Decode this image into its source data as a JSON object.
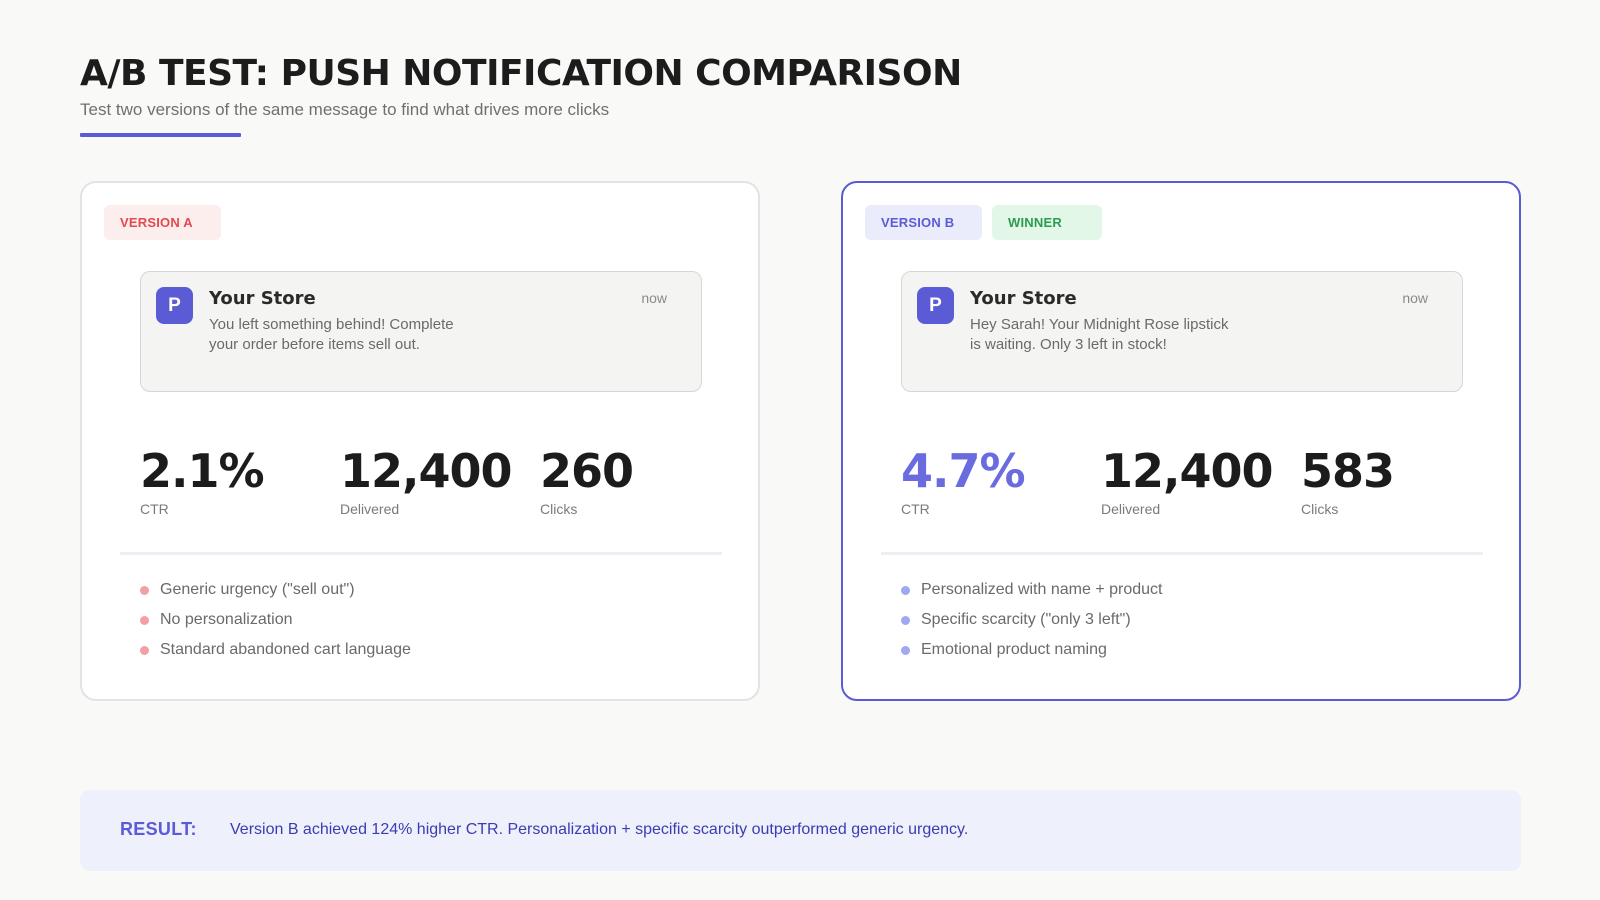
{
  "header": {
    "title": "A/B TEST: PUSH NOTIFICATION COMPARISON",
    "subtitle": "Test two versions of the same message to find what drives more clicks"
  },
  "colors": {
    "accent": "#5b5bd6",
    "version_a": "#e5484d",
    "winner": "#2a9d4f"
  },
  "version_a": {
    "badge": "VERSION A",
    "notification": {
      "icon_letter": "P",
      "app_name": "Your Store",
      "time": "now",
      "body": "You left something behind! Complete your order before items sell out."
    },
    "stats": [
      {
        "value": "2.1%",
        "label": "CTR"
      },
      {
        "value": "12,400",
        "label": "Delivered"
      },
      {
        "value": "260",
        "label": "Clicks"
      }
    ],
    "notes": [
      "Generic urgency (\"sell out\")",
      "No personalization",
      "Standard abandoned cart language"
    ]
  },
  "version_b": {
    "badge": "VERSION B",
    "winner_badge": "WINNER",
    "notification": {
      "icon_letter": "P",
      "app_name": "Your Store",
      "time": "now",
      "body": "Hey Sarah! Your Midnight Rose lipstick is waiting. Only 3 left in stock!"
    },
    "stats": [
      {
        "value": "4.7%",
        "label": "CTR"
      },
      {
        "value": "12,400",
        "label": "Delivered"
      },
      {
        "value": "583",
        "label": "Clicks"
      }
    ],
    "notes": [
      "Personalized with name + product",
      "Specific scarcity (\"only 3 left\")",
      "Emotional product naming"
    ]
  },
  "result": {
    "label": "RESULT:",
    "text": "Version B achieved 124% higher CTR. Personalization + specific scarcity outperformed generic urgency."
  }
}
